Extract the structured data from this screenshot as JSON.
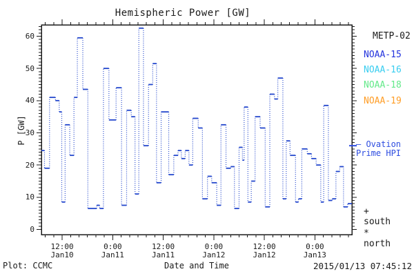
{
  "title": "Hemispheric Power [GW]",
  "y_axis": {
    "label": "P [GW]"
  },
  "x_axis": {
    "label": "Date and Time"
  },
  "footer": {
    "left": "Plot: CCMC",
    "timestamp": "2015/01/13 07:45:12"
  },
  "legend": {
    "satellites": [
      {
        "label": "METP-02",
        "color": "#1a1a1a"
      },
      {
        "label": "NOAA-15",
        "color": "#2333dd"
      },
      {
        "label": "NOAA-16",
        "color": "#38cdf0"
      },
      {
        "label": "NOAA-18",
        "color": "#63e989"
      },
      {
        "label": "NOAA-19",
        "color": "#ff9d26"
      }
    ],
    "ovation": {
      "line1": "— Ovation",
      "line2": "Prime HPI",
      "color": "#2d4ce0"
    },
    "south": "+ south",
    "north": "* north"
  },
  "chart_data": {
    "type": "line",
    "subtype": "step-segments-with-dotted-connectors",
    "title": "Hemispheric Power [GW]",
    "ylabel": "P [GW]",
    "xlabel": "Date and Time",
    "ylim": [
      0,
      63.5
    ],
    "y_major_ticks": [
      0,
      10,
      20,
      30,
      40,
      50,
      60
    ],
    "y_minor_step_gw": 1,
    "x_hours_since": "2015-01-10 00:00",
    "x_hours_range": [
      7.1,
      80.8
    ],
    "x_minor_step_hours": 2,
    "x_major_ticks": [
      {
        "hours": 12,
        "time": "12:00",
        "date": "Jan10"
      },
      {
        "hours": 24,
        "time": "0:00",
        "date": "Jan11"
      },
      {
        "hours": 36,
        "time": "12:00",
        "date": "Jan11"
      },
      {
        "hours": 48,
        "time": "0:00",
        "date": "Jan12"
      },
      {
        "hours": 60,
        "time": "12:00",
        "date": "Jan12"
      },
      {
        "hours": 72,
        "time": "0:00",
        "date": "Jan13"
      }
    ],
    "grid": false,
    "legend_position": "right",
    "series": [
      {
        "name": "NOAA-15",
        "color": "#2145cc",
        "breakpoints_hours": [
          7.1,
          7.8,
          9.0,
          10.4,
          11.3,
          11.9,
          12.7,
          13.8,
          14.8,
          15.6,
          16.9,
          18.1,
          20.2,
          20.9,
          21.8,
          23.1,
          24.8,
          26.1,
          27.3,
          28.4,
          29.3,
          30.2,
          31.3,
          32.5,
          33.5,
          34.4,
          35.5,
          37.3,
          38.5,
          39.5,
          40.3,
          41.2,
          42.1,
          43.0,
          44.3,
          45.3,
          46.5,
          47.5,
          48.7,
          49.7,
          50.9,
          52.0,
          52.9,
          54.0,
          54.8,
          55.2,
          56.1,
          56.9,
          57.8,
          59.0,
          60.2,
          61.3,
          62.4,
          63.2,
          64.4,
          65.2,
          66.1,
          67.4,
          68.1,
          68.9,
          70.2,
          71.2,
          72.3,
          73.4,
          74.1,
          75.2,
          76.1,
          77.0,
          77.9,
          78.8,
          79.8,
          80.8
        ],
        "values_gw": [
          24.5,
          19,
          41,
          40,
          36.5,
          8.5,
          32.5,
          23,
          41,
          59.5,
          43.5,
          6.5,
          7.5,
          6.5,
          50,
          34,
          44,
          7.5,
          37,
          35,
          11,
          62.5,
          26,
          45,
          51.5,
          14.5,
          36.5,
          17,
          23,
          24.5,
          22,
          24.5,
          20,
          34.5,
          31.5,
          9.5,
          16.5,
          14.5,
          7.5,
          32.5,
          19,
          19.5,
          6.5,
          25.5,
          21.5,
          38,
          8.5,
          15,
          35,
          31.5,
          7,
          42,
          40.5,
          47,
          9.5,
          27.5,
          23,
          8.5,
          9.5,
          25,
          23.5,
          22,
          20,
          8.5,
          38.5,
          9,
          9.5,
          18,
          19.5,
          7,
          8
        ]
      }
    ],
    "ovation_prime_hpi_gw": 26,
    "south_marker_symbol": "+",
    "north_marker_symbol": "*"
  }
}
